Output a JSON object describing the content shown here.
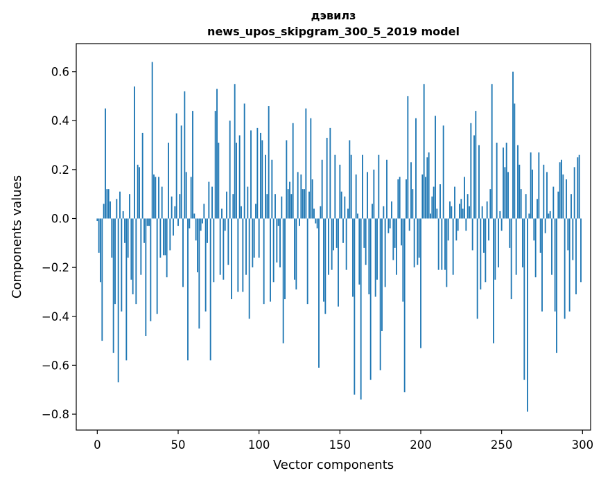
{
  "chart_data": {
    "type": "bar",
    "title_line1": "дэвилз",
    "title_line2": "news_upos_skipgram_300_5_2019 model",
    "xlabel": "Vector components",
    "ylabel": "Components values",
    "xlim": [
      -13,
      305
    ],
    "ylim": [
      -0.865,
      0.715
    ],
    "xticks": [
      0,
      50,
      100,
      150,
      200,
      250,
      300
    ],
    "xtick_labels": [
      "0",
      "50",
      "100",
      "150",
      "200",
      "250",
      "300"
    ],
    "yticks": [
      -0.8,
      -0.6,
      -0.4,
      -0.2,
      0.0,
      0.2,
      0.4,
      0.6
    ],
    "ytick_labels": [
      "−0.8",
      "−0.6",
      "−0.4",
      "−0.2",
      "0.0",
      "0.2",
      "0.4",
      "0.6"
    ],
    "bar_color": "#1f77b4",
    "grid": false,
    "x": "0..299",
    "values": [
      -0.01,
      -0.14,
      -0.26,
      -0.5,
      0.06,
      0.45,
      0.12,
      0.12,
      0.07,
      -0.16,
      -0.55,
      -0.35,
      0.08,
      -0.67,
      0.11,
      -0.38,
      0.03,
      -0.1,
      -0.58,
      -0.16,
      0.1,
      -0.25,
      -0.31,
      0.54,
      -0.35,
      0.22,
      0.21,
      -0.23,
      0.35,
      -0.1,
      -0.48,
      -0.03,
      -0.03,
      -0.42,
      0.64,
      0.18,
      0.17,
      -0.39,
      0.17,
      -0.16,
      0.13,
      -0.15,
      -0.15,
      -0.24,
      0.31,
      -0.13,
      0.09,
      -0.07,
      0.05,
      0.43,
      -0.03,
      0.1,
      0.38,
      -0.28,
      0.52,
      0.19,
      -0.58,
      -0.04,
      0.17,
      0.44,
      0.02,
      -0.09,
      -0.22,
      -0.45,
      -0.05,
      -0.02,
      0.06,
      -0.38,
      -0.1,
      0.15,
      -0.58,
      0.13,
      -0.26,
      0.44,
      0.53,
      0.31,
      -0.23,
      0.04,
      -0.25,
      -0.05,
      0.11,
      -0.19,
      0.4,
      -0.33,
      0.1,
      0.55,
      0.31,
      -0.3,
      0.34,
      0.05,
      -0.3,
      0.47,
      -0.23,
      0.13,
      -0.41,
      0.36,
      -0.2,
      -0.16,
      0.06,
      0.37,
      -0.16,
      0.35,
      0.32,
      -0.35,
      0.26,
      0.1,
      0.46,
      -0.34,
      0.24,
      -0.26,
      0.1,
      -0.18,
      -0.03,
      -0.2,
      0.09,
      -0.51,
      -0.33,
      0.32,
      0.12,
      0.15,
      0.1,
      0.39,
      -0.25,
      -0.29,
      0.19,
      -0.03,
      0.18,
      0.12,
      0.12,
      0.45,
      -0.35,
      0.11,
      0.41,
      0.16,
      0.04,
      -0.02,
      -0.04,
      -0.61,
      0.05,
      0.24,
      -0.34,
      -0.39,
      0.33,
      -0.23,
      0.37,
      -0.21,
      -0.13,
      0.26,
      -0.12,
      -0.36,
      0.22,
      0.11,
      -0.1,
      0.09,
      -0.21,
      0.04,
      0.32,
      0.26,
      -0.32,
      -0.72,
      0.18,
      0.02,
      -0.27,
      -0.74,
      0.26,
      -0.12,
      -0.19,
      0.19,
      -0.31,
      -0.66,
      0.06,
      0.2,
      -0.32,
      -0.25,
      0.26,
      -0.62,
      -0.46,
      0.05,
      -0.28,
      0.24,
      -0.06,
      -0.04,
      0.07,
      -0.17,
      -0.12,
      -0.23,
      0.16,
      0.17,
      -0.11,
      -0.34,
      -0.71,
      0.16,
      0.5,
      -0.05,
      0.23,
      0.12,
      -0.2,
      0.41,
      -0.19,
      -0.16,
      -0.53,
      0.18,
      0.55,
      0.17,
      0.25,
      0.27,
      0.02,
      0.09,
      0.13,
      0.42,
      0.04,
      -0.21,
      0.14,
      -0.21,
      0.38,
      -0.21,
      -0.28,
      -0.09,
      0.07,
      0.05,
      -0.23,
      0.13,
      -0.09,
      -0.05,
      0.06,
      0.08,
      0.04,
      0.17,
      -0.05,
      0.1,
      0.05,
      0.39,
      -0.13,
      0.34,
      0.44,
      -0.41,
      0.3,
      -0.29,
      0.05,
      -0.14,
      -0.26,
      0.07,
      -0.09,
      0.12,
      0.55,
      -0.51,
      -0.25,
      0.31,
      -0.2,
      0.03,
      -0.05,
      0.29,
      0.21,
      0.31,
      0.19,
      -0.12,
      -0.33,
      0.6,
      0.47,
      -0.23,
      0.3,
      0.22,
      0.12,
      -0.2,
      -0.66,
      0.1,
      -0.79,
      0.02,
      0.27,
      0.2,
      -0.09,
      -0.24,
      0.08,
      0.27,
      -0.14,
      -0.38,
      0.22,
      -0.06,
      0.19,
      0.02,
      0.03,
      -0.23,
      0.13,
      -0.38,
      -0.55,
      0.11,
      0.23,
      0.24,
      0.18,
      -0.41,
      0.16,
      -0.13,
      -0.38,
      0.1,
      -0.17,
      0.21,
      -0.31,
      0.25,
      0.26,
      -0.26
    ]
  }
}
